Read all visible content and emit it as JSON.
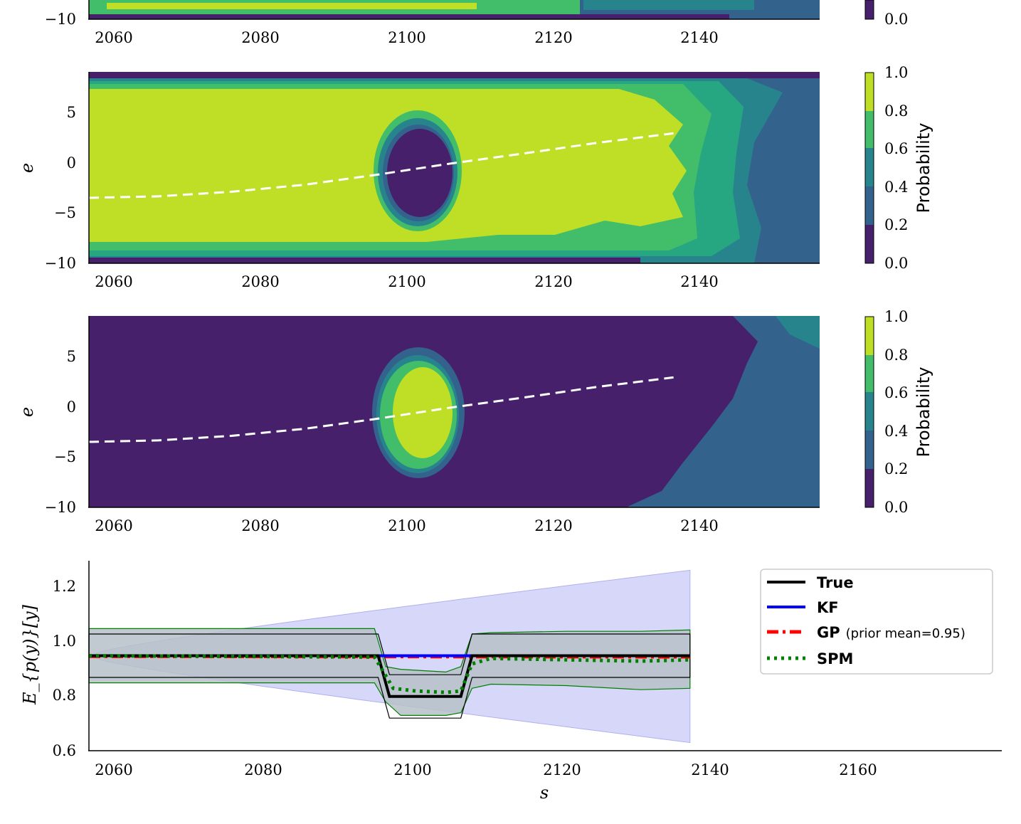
{
  "colors": {
    "viridis": [
      "#46206b",
      "#33628d",
      "#27848d",
      "#27a781",
      "#42bd6a",
      "#bedf26"
    ],
    "dashed_line": "#ffffff",
    "true": "#000000",
    "kf": "#0000ff",
    "gp": "#ff0000",
    "spm": "#008000",
    "band_blue": "#c9c9f7",
    "band_gray": "#b7c1c9"
  },
  "chart_data": [
    {
      "type": "heatmap",
      "id": "panel-1-partial",
      "xlabel": "",
      "ylabel": "",
      "xlim": [
        2056.5,
        2156.5
      ],
      "ylim": [
        -10,
        9
      ],
      "xticks": [
        "2060",
        "2080",
        "2100",
        "2120",
        "2140"
      ],
      "yticks": [
        "−10"
      ],
      "colorbar": {
        "ticks": [
          "0.0"
        ],
        "label": ""
      }
    },
    {
      "type": "heatmap",
      "id": "panel-2",
      "ylabel": "e",
      "xlim": [
        2056.5,
        2156.5
      ],
      "ylim": [
        -10,
        9
      ],
      "xticks": [
        "2060",
        "2080",
        "2100",
        "2120",
        "2140"
      ],
      "yticks": [
        "5",
        "0",
        "−5",
        "−10"
      ],
      "colorbar": {
        "label": "Probability",
        "ticks": [
          "1.0",
          "0.8",
          "0.6",
          "0.4",
          "0.2",
          "0.0"
        ],
        "levels": [
          0.0,
          0.2,
          0.4,
          0.6,
          0.8,
          1.0
        ]
      },
      "path_line": {
        "style": "dashed",
        "x": [
          2056.5,
          2066,
          2076,
          2086,
          2096,
          2106,
          2116,
          2126,
          2136.5
        ],
        "y": [
          -3.5,
          -3.35,
          -2.9,
          -2.2,
          -1.2,
          -0.1,
          0.9,
          1.95,
          2.9
        ]
      }
    },
    {
      "type": "heatmap",
      "id": "panel-3",
      "ylabel": "e",
      "xlim": [
        2056.5,
        2156.5
      ],
      "ylim": [
        -10,
        9
      ],
      "xticks": [
        "2060",
        "2080",
        "2100",
        "2120",
        "2140"
      ],
      "yticks": [
        "5",
        "0",
        "−5",
        "−10"
      ],
      "colorbar": {
        "label": "Probability",
        "ticks": [
          "1.0",
          "0.8",
          "0.6",
          "0.4",
          "0.2",
          "0.0"
        ],
        "levels": [
          0.0,
          0.2,
          0.4,
          0.6,
          0.8,
          1.0
        ]
      },
      "path_line": {
        "style": "dashed",
        "x": [
          2056.5,
          2066,
          2076,
          2086,
          2096,
          2106,
          2116,
          2126,
          2136.5
        ],
        "y": [
          -3.5,
          -3.35,
          -2.9,
          -2.2,
          -1.2,
          -0.1,
          0.9,
          1.95,
          2.9
        ]
      }
    },
    {
      "type": "line",
      "id": "panel-4",
      "xlabel": "s",
      "ylabel": "E_{p(y)}[y]",
      "xlim": [
        2056.5,
        2178
      ],
      "ylim": [
        0.6,
        1.3
      ],
      "xticks": [
        "2060",
        "2080",
        "2100",
        "2120",
        "2140",
        "2160"
      ],
      "yticks": [
        "1.2",
        "1.0",
        "0.8",
        "0.6"
      ],
      "series": [
        {
          "name": "True",
          "x": [
            2056.5,
            2095,
            2096.5,
            2106,
            2107.5,
            2136.5
          ],
          "y": [
            0.95,
            0.95,
            0.8,
            0.8,
            0.95,
            0.95
          ]
        },
        {
          "name": "KF",
          "x": [
            2056.5,
            2136.5
          ],
          "y": [
            0.95,
            0.95
          ]
        },
        {
          "name": "GP",
          "note": "(prior mean=0.95)",
          "x": [
            2056.5,
            2136.5
          ],
          "y": [
            0.948,
            0.946
          ]
        },
        {
          "name": "SPM",
          "x": [
            2056.5,
            2094.5,
            2095.5,
            2097,
            2100,
            2104,
            2106,
            2107.5,
            2110,
            2120,
            2130,
            2136.5
          ],
          "y": [
            0.95,
            0.945,
            0.9,
            0.83,
            0.82,
            0.815,
            0.82,
            0.92,
            0.94,
            0.935,
            0.93,
            0.935
          ]
        }
      ],
      "bands": [
        {
          "name": "KF uncertainty",
          "x": [
            2056.5,
            2136.5
          ],
          "lower_start": 0.95,
          "lower_end": 0.63,
          "upper_start": 0.95,
          "upper_end": 1.265
        },
        {
          "name": "True band",
          "x": [
            2056.5,
            2095,
            2096.5,
            2106,
            2107.5,
            2136.5
          ],
          "lower": [
            0.87,
            0.87,
            0.72,
            0.72,
            0.87,
            0.87
          ],
          "upper": [
            1.03,
            1.03,
            0.88,
            0.88,
            1.03,
            1.03
          ]
        },
        {
          "name": "SPM band",
          "x": [
            2056.5,
            2094.5,
            2096,
            2098,
            2104,
            2106,
            2107.5,
            2110,
            2120,
            2130,
            2136.5
          ],
          "lower": [
            0.85,
            0.85,
            0.78,
            0.73,
            0.73,
            0.74,
            0.83,
            0.845,
            0.84,
            0.825,
            0.83
          ],
          "upper": [
            1.05,
            1.05,
            0.91,
            0.9,
            0.89,
            0.91,
            1.03,
            1.035,
            1.04,
            1.04,
            1.045
          ]
        }
      ],
      "legend": {
        "position": "top-right",
        "entries": [
          "True",
          "KF",
          "GP",
          "SPM"
        ],
        "gp_note": "(prior mean=0.95)"
      }
    }
  ]
}
